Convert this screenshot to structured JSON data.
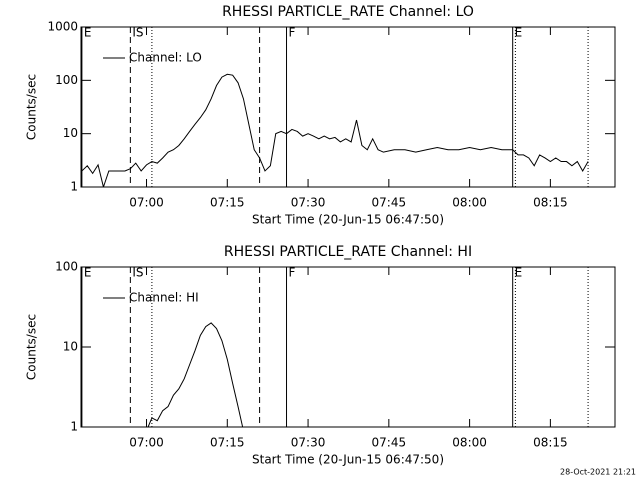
{
  "chart_data": [
    {
      "type": "line",
      "title": "RHESSI PARTICLE_RATE Channel: LO",
      "x_label": "Start Time (20-Jun-15 06:47:50)",
      "y_label": "Counts/sec",
      "log_y": true,
      "xlim": [
        "06:47:50",
        "08:27"
      ],
      "ylim": [
        1,
        1000
      ],
      "yticks": [
        1,
        10,
        100,
        1000
      ],
      "xticks": [
        "07:00",
        "07:15",
        "07:30",
        "07:45",
        "08:00",
        "08:15"
      ],
      "legend": "upper left",
      "x": [
        "06:48",
        "06:49",
        "06:50",
        "06:51",
        "06:52",
        "06:53",
        "06:54",
        "06:55",
        "06:56",
        "06:57",
        "06:58",
        "06:59",
        "07:00",
        "07:01",
        "07:02",
        "07:03",
        "07:04",
        "07:05",
        "07:06",
        "07:07",
        "07:08",
        "07:09",
        "07:10",
        "07:11",
        "07:12",
        "07:13",
        "07:14",
        "07:15",
        "07:16",
        "07:17",
        "07:18",
        "07:19",
        "07:20",
        "07:21",
        "07:22",
        "07:23",
        "07:24",
        "07:25",
        "07:26",
        "07:27",
        "07:28",
        "07:29",
        "07:30",
        "07:31",
        "07:32",
        "07:33",
        "07:34",
        "07:35",
        "07:36",
        "07:37",
        "07:38",
        "07:39",
        "07:40",
        "07:41",
        "07:42",
        "07:43",
        "07:44",
        "07:46",
        "07:48",
        "07:50",
        "07:52",
        "07:54",
        "07:56",
        "07:58",
        "08:00",
        "08:02",
        "08:04",
        "08:06",
        "08:08",
        "08:09",
        "08:10",
        "08:11",
        "08:12",
        "08:13",
        "08:14",
        "08:15",
        "08:16",
        "08:17",
        "08:18",
        "08:19",
        "08:20",
        "08:21",
        "08:22"
      ],
      "series": [
        {
          "name": "Channel: LO",
          "color": "#000000",
          "values": [
            2,
            2.5,
            1.8,
            2.6,
            1,
            2,
            2,
            2,
            2,
            2.2,
            2.8,
            2,
            2.6,
            3,
            2.8,
            3.5,
            4.5,
            5,
            6,
            8,
            11,
            15,
            20,
            28,
            45,
            80,
            115,
            130,
            125,
            90,
            45,
            15,
            5,
            3.5,
            2,
            2.5,
            10,
            11,
            10,
            12,
            11,
            9,
            10,
            9,
            8,
            9,
            8,
            8.5,
            7,
            8,
            7,
            18,
            6,
            5,
            8,
            5,
            4.5,
            5,
            5,
            4.5,
            5,
            5.5,
            5,
            5,
            5.5,
            5,
            5.5,
            5,
            5,
            4,
            4,
            3.5,
            2.5,
            4,
            3.5,
            3,
            3.5,
            3,
            3,
            2.5,
            3,
            2,
            3
          ]
        }
      ],
      "annotations": [
        {
          "x": "06:48",
          "label": "E",
          "style": "solid"
        },
        {
          "x": "06:57",
          "label": "IS",
          "style": "dashed"
        },
        {
          "x": "07:01",
          "style": "dotted"
        },
        {
          "x": "07:21",
          "style": "dashed"
        },
        {
          "x": "07:26",
          "label": "F",
          "style": "solid"
        },
        {
          "x": "08:08",
          "label": "E",
          "style": "solid"
        },
        {
          "x": "08:08:30",
          "style": "dotted"
        },
        {
          "x": "08:22",
          "style": "dotted"
        }
      ]
    },
    {
      "type": "line",
      "title": "RHESSI PARTICLE_RATE Channel: HI",
      "x_label": "Start Time (20-Jun-15 06:47:50)",
      "y_label": "Counts/sec",
      "log_y": true,
      "xlim": [
        "06:47:50",
        "08:27"
      ],
      "ylim": [
        1,
        100
      ],
      "yticks": [
        1,
        10,
        100
      ],
      "xticks": [
        "07:00",
        "07:15",
        "07:30",
        "07:45",
        "08:00",
        "08:15"
      ],
      "legend": "upper left",
      "x": [
        "07:00",
        "07:01",
        "07:02",
        "07:03",
        "07:04",
        "07:05",
        "07:06",
        "07:07",
        "07:08",
        "07:09",
        "07:10",
        "07:11",
        "07:12",
        "07:13",
        "07:14",
        "07:15",
        "07:16",
        "07:17",
        "07:18"
      ],
      "series": [
        {
          "name": "Channel: HI",
          "color": "#000000",
          "values": [
            0.9,
            1.3,
            1.2,
            1.6,
            1.8,
            2.5,
            3,
            4,
            6,
            9,
            14,
            18,
            20,
            17,
            12,
            7,
            3.5,
            1.8,
            0.9
          ]
        }
      ],
      "annotations": [
        {
          "x": "06:48",
          "label": "E",
          "style": "solid"
        },
        {
          "x": "06:57",
          "label": "IS",
          "style": "dashed"
        },
        {
          "x": "07:01",
          "style": "dotted"
        },
        {
          "x": "07:21",
          "style": "dashed"
        },
        {
          "x": "07:26",
          "label": "F",
          "style": "solid"
        },
        {
          "x": "08:08",
          "label": "E",
          "style": "solid"
        },
        {
          "x": "08:08:30",
          "style": "dotted"
        },
        {
          "x": "08:22",
          "style": "dotted"
        }
      ]
    }
  ],
  "footer": "28-Oct-2021 21:21"
}
